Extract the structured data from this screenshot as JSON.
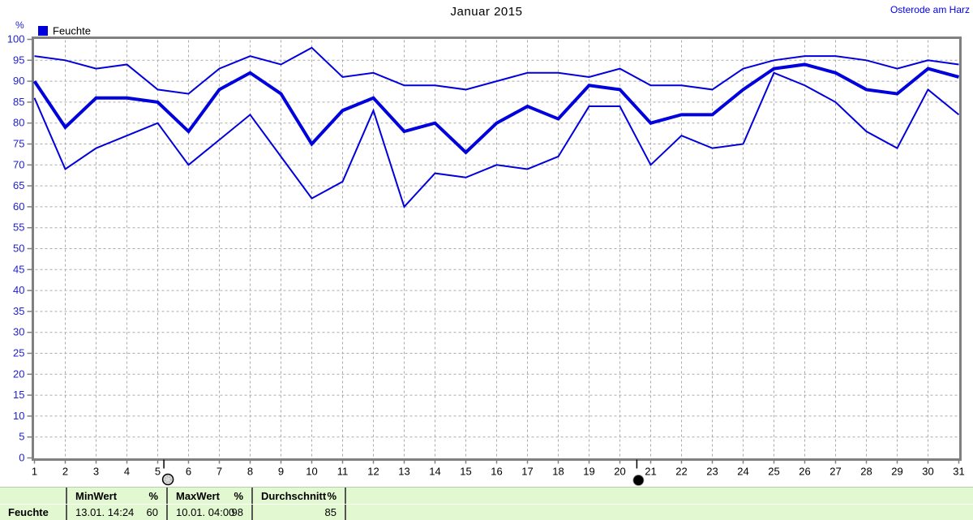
{
  "header": {
    "title": "Januar 2015",
    "station": "Osterode am Harz"
  },
  "legend": {
    "label": "Feuchte",
    "swatch_color": "#0000dd"
  },
  "axis": {
    "y_unit": "%"
  },
  "colors": {
    "line_blue": "#0000dd",
    "y_label_blue": "#2222cc",
    "x_label_black": "#000000",
    "grid_gray": "#aaaaaa",
    "axis_gray": "#808080",
    "table_green": "#e2f8d0"
  },
  "chart_data": {
    "type": "line",
    "title": "Januar 2015",
    "xlabel": "",
    "ylabel": "%",
    "x": [
      1,
      2,
      3,
      4,
      5,
      6,
      7,
      8,
      9,
      10,
      11,
      12,
      13,
      14,
      15,
      16,
      17,
      18,
      19,
      20,
      21,
      22,
      23,
      24,
      25,
      26,
      27,
      28,
      29,
      30,
      31
    ],
    "series": [
      {
        "name": "Feuchte max",
        "values": [
          96,
          95,
          93,
          94,
          88,
          87,
          93,
          96,
          94,
          98,
          91,
          92,
          89,
          89,
          88,
          90,
          92,
          92,
          91,
          93,
          89,
          89,
          88,
          93,
          95,
          96,
          96,
          95,
          93,
          95,
          94
        ],
        "stroke_width": 2
      },
      {
        "name": "Feuchte Durchschnitt",
        "values": [
          90,
          79,
          86,
          86,
          85,
          78,
          88,
          92,
          87,
          75,
          83,
          86,
          78,
          80,
          73,
          80,
          84,
          81,
          89,
          88,
          80,
          82,
          82,
          88,
          93,
          94,
          92,
          88,
          87,
          93,
          91
        ],
        "stroke_width": 4
      },
      {
        "name": "Feuchte min",
        "values": [
          86,
          69,
          74,
          77,
          80,
          70,
          76,
          82,
          72,
          62,
          66,
          83,
          60,
          68,
          67,
          70,
          69,
          72,
          84,
          84,
          70,
          77,
          74,
          75,
          92,
          89,
          85,
          78,
          74,
          88,
          82
        ],
        "stroke_width": 2
      }
    ],
    "ylim": [
      0,
      100
    ],
    "ytick_step": 5,
    "xlim": [
      1,
      31
    ],
    "grid": true,
    "legend_position": "top-left",
    "moon_markers": [
      {
        "day": 5.2,
        "symbol": "full-moon"
      },
      {
        "day": 20.55,
        "symbol": "new-moon"
      }
    ]
  },
  "table": {
    "row_header": "Feuchte",
    "columns": [
      {
        "label": "MinWert",
        "unit": "%",
        "value": "13.01.  14:24",
        "amount": "60"
      },
      {
        "label": "MaxWert",
        "unit": "%",
        "value": "10.01.  04:00",
        "amount": "98"
      },
      {
        "label": "Durchschnitt",
        "unit": "%",
        "value": "",
        "amount": "85"
      }
    ]
  }
}
